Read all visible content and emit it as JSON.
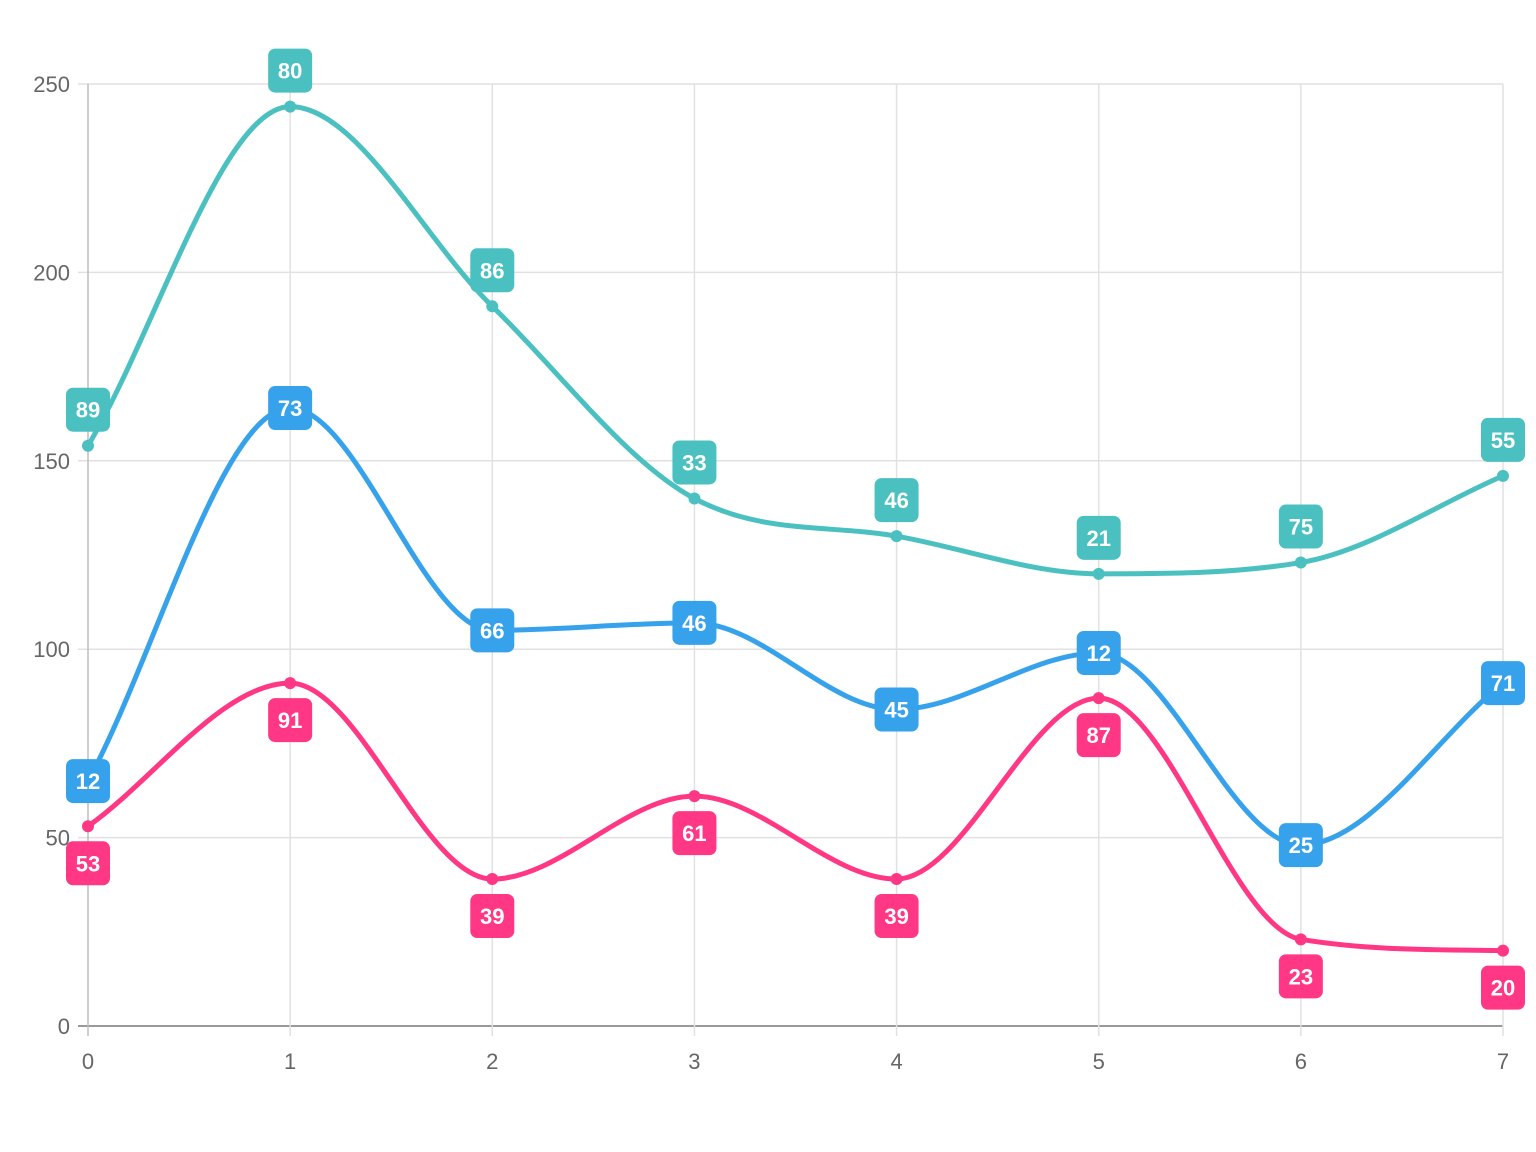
{
  "chart_data": {
    "type": "line",
    "x": [
      0,
      1,
      2,
      3,
      4,
      5,
      6,
      7
    ],
    "ylim": [
      0,
      250
    ],
    "yticks": [
      0,
      50,
      100,
      150,
      200,
      250
    ],
    "xticks": [
      0,
      1,
      2,
      3,
      4,
      5,
      6,
      7
    ],
    "grid": true,
    "stacked": true,
    "series": [
      {
        "key": "pink",
        "color": "#ff3784",
        "label_position": "below",
        "values": [
          53,
          91,
          39,
          61,
          39,
          87,
          23,
          20
        ],
        "cumulative": [
          53,
          91,
          39,
          61,
          39,
          87,
          23,
          20
        ]
      },
      {
        "key": "blue",
        "color": "#36a2eb",
        "label_position": "center",
        "values": [
          12,
          73,
          66,
          46,
          45,
          12,
          25,
          71
        ],
        "cumulative": [
          65,
          164,
          105,
          107,
          84,
          99,
          48,
          91
        ]
      },
      {
        "key": "teal",
        "color": "#4bc0c0",
        "label_position": "above",
        "values": [
          89,
          80,
          86,
          33,
          46,
          21,
          75,
          55
        ],
        "cumulative": [
          154,
          244,
          191,
          140,
          130,
          120,
          123,
          146
        ]
      }
    ]
  }
}
